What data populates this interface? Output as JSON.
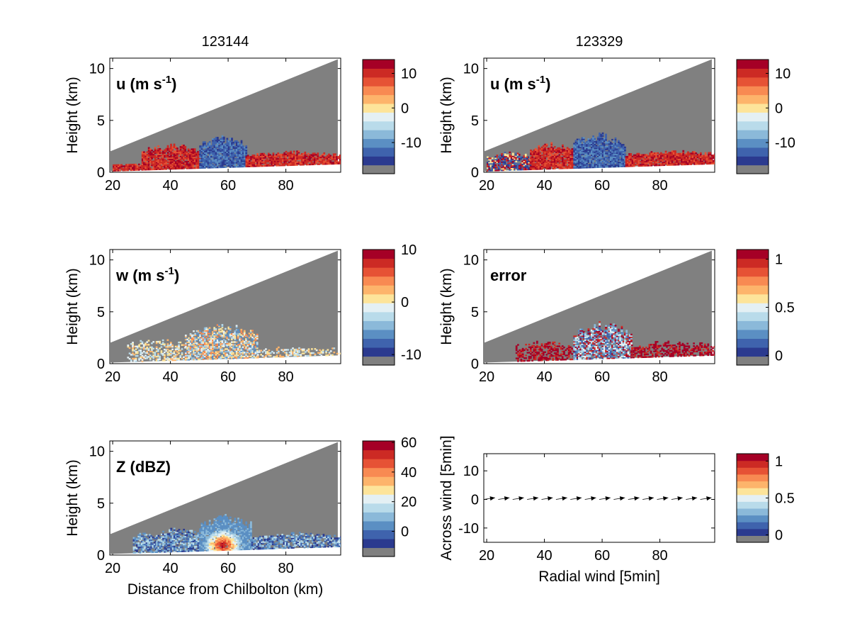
{
  "figure": {
    "titles": [
      "123144",
      "123329"
    ]
  },
  "colormap": [
    "#808080",
    "#2b3a8f",
    "#3f63ad",
    "#5b8fc3",
    "#8bb9d9",
    "#b9dbea",
    "#e4f0f4",
    "#fde49a",
    "#fdb46b",
    "#f88a52",
    "#e65235",
    "#cc2a24",
    "#a50026"
  ],
  "chart_data": [
    {
      "type": "heatmap",
      "title": "123144",
      "panel_label": "u (m s-1)",
      "xlabel": "",
      "ylabel": "Height (km)",
      "xlim": [
        19,
        99
      ],
      "ylim": [
        0,
        11
      ],
      "xticks": [
        "20",
        "40",
        "60",
        "80"
      ],
      "yticks": [
        "0",
        "5",
        "10"
      ],
      "colorbar": {
        "ticks": [
          "10",
          "0",
          "-10"
        ],
        "tick_values": [
          10,
          0,
          -10
        ],
        "range": [
          -19,
          14
        ]
      },
      "echo_regions": [
        {
          "x": [
            20,
            30
          ],
          "top_km": 0.8,
          "category": "u-positive"
        },
        {
          "x": [
            30,
            50
          ],
          "top_km": 2.5,
          "category": "u-positive"
        },
        {
          "x": [
            50,
            66
          ],
          "top_km": 3.3,
          "category": "u-negative"
        },
        {
          "x": [
            66,
            99
          ],
          "top_km": 1.9,
          "category": "u-positive"
        }
      ]
    },
    {
      "type": "heatmap",
      "panel_label": "u (m s-1)",
      "xlabel": "",
      "ylabel": "Height (km)",
      "xlim": [
        19,
        99
      ],
      "ylim": [
        0,
        11
      ],
      "xticks": [
        "20",
        "40",
        "60",
        "80"
      ],
      "yticks": [
        "0",
        "5",
        "10"
      ],
      "colorbar": {
        "ticks": [
          "10",
          "0",
          "-10"
        ],
        "tick_values": [
          10,
          0,
          -10
        ],
        "range": [
          -19,
          14
        ]
      },
      "echo_regions": [
        {
          "x": [
            20,
            35
          ],
          "top_km": 1.8,
          "category": "u-mixed"
        },
        {
          "x": [
            35,
            50
          ],
          "top_km": 2.6,
          "category": "u-positive"
        },
        {
          "x": [
            50,
            68
          ],
          "top_km": 3.5,
          "category": "u-negative"
        },
        {
          "x": [
            68,
            99
          ],
          "top_km": 2.0,
          "category": "u-positive"
        }
      ]
    },
    {
      "type": "heatmap",
      "panel_label": "w (m s-1)",
      "xlabel": "",
      "ylabel": "Height (km)",
      "xlim": [
        19,
        99
      ],
      "ylim": [
        0,
        11
      ],
      "xticks": [
        "20",
        "40",
        "60",
        "80"
      ],
      "yticks": [
        "0",
        "5",
        "10"
      ],
      "colorbar": {
        "ticks": [
          "10",
          "0",
          "-10"
        ],
        "tick_values": [
          10,
          0,
          -10
        ],
        "range": [
          -12,
          10
        ]
      },
      "echo_regions": [
        {
          "x": [
            25,
            45
          ],
          "top_km": 2.2,
          "category": "w-weak"
        },
        {
          "x": [
            45,
            70
          ],
          "top_km": 3.5,
          "category": "w-mixed"
        },
        {
          "x": [
            70,
            99
          ],
          "top_km": 1.5,
          "category": "w-weak"
        }
      ]
    },
    {
      "type": "heatmap",
      "panel_label": "error",
      "xlabel": "",
      "ylabel": "Height (km)",
      "xlim": [
        19,
        99
      ],
      "ylim": [
        0,
        11
      ],
      "xticks": [
        "20",
        "40",
        "60",
        "80"
      ],
      "yticks": [
        "0",
        "5",
        "10"
      ],
      "colorbar": {
        "ticks": [
          "1",
          "0.5",
          "0"
        ],
        "tick_values": [
          1,
          0.5,
          0
        ],
        "range": [
          -0.1,
          1.1
        ]
      },
      "echo_regions": [
        {
          "x": [
            30,
            50
          ],
          "top_km": 2.0,
          "category": "error-high"
        },
        {
          "x": [
            50,
            70
          ],
          "top_km": 3.7,
          "category": "error-mixed"
        },
        {
          "x": [
            70,
            99
          ],
          "top_km": 2.0,
          "category": "error-high"
        }
      ]
    },
    {
      "type": "heatmap",
      "panel_label": "Z (dBZ)",
      "xlabel": "Distance from Chilbolton (km)",
      "ylabel": "Height (km)",
      "xlim": [
        19,
        99
      ],
      "ylim": [
        0,
        11
      ],
      "xticks": [
        "20",
        "40",
        "60",
        "80"
      ],
      "yticks": [
        "0",
        "5",
        "10"
      ],
      "colorbar": {
        "ticks": [
          "60",
          "40",
          "20",
          "0"
        ],
        "tick_values": [
          60,
          40,
          20,
          0
        ],
        "range": [
          -17,
          61
        ]
      },
      "echo_regions": [
        {
          "x": [
            27,
            35
          ],
          "top_km": 2.0,
          "category": "z-light"
        },
        {
          "x": [
            35,
            50
          ],
          "top_km": 2.5,
          "category": "z-light"
        },
        {
          "x": [
            50,
            68
          ],
          "top_km": 3.6,
          "category": "z-core",
          "peak_dbz": 60,
          "peak_x": 58
        },
        {
          "x": [
            68,
            99
          ],
          "top_km": 2.0,
          "category": "z-light"
        }
      ]
    },
    {
      "type": "line",
      "xlabel": "Radial wind [5min]",
      "ylabel": "Across wind [5min]",
      "xlim": [
        19,
        99
      ],
      "ylim": [
        -15,
        16
      ],
      "xticks": [
        "20",
        "40",
        "60",
        "80"
      ],
      "yticks": [
        "10",
        "0",
        "-10"
      ],
      "colorbar": {
        "ticks": [
          "1",
          "0.5",
          "0"
        ],
        "tick_values": [
          1,
          0.5,
          0
        ],
        "range": [
          -0.1,
          1.1
        ]
      },
      "arrows": [
        {
          "x": 19,
          "y": 0,
          "u": 6,
          "v": 0.6
        },
        {
          "x": 24,
          "y": 0,
          "u": 6,
          "v": 0.6
        },
        {
          "x": 29,
          "y": 0,
          "u": 6,
          "v": 0.6
        },
        {
          "x": 34,
          "y": 0,
          "u": 6,
          "v": 0.6
        },
        {
          "x": 39,
          "y": 0,
          "u": 6,
          "v": 0.6
        },
        {
          "x": 44,
          "y": 0,
          "u": 6,
          "v": 0.6
        },
        {
          "x": 49,
          "y": 0,
          "u": 6,
          "v": 0.6
        },
        {
          "x": 54,
          "y": 0,
          "u": 6,
          "v": 0.6
        },
        {
          "x": 59,
          "y": 0,
          "u": 6,
          "v": 0.6
        },
        {
          "x": 64,
          "y": 0,
          "u": 6,
          "v": 0.6
        },
        {
          "x": 69,
          "y": 0,
          "u": 6,
          "v": 0.6
        },
        {
          "x": 74,
          "y": 0,
          "u": 6,
          "v": 0.6
        },
        {
          "x": 79,
          "y": 0,
          "u": 6,
          "v": 0.6
        },
        {
          "x": 84,
          "y": 0,
          "u": 6,
          "v": 0.6
        },
        {
          "x": 89,
          "y": 0,
          "u": 6,
          "v": 0.6
        },
        {
          "x": 94,
          "y": 0,
          "u": 6,
          "v": 0.6
        }
      ]
    }
  ]
}
